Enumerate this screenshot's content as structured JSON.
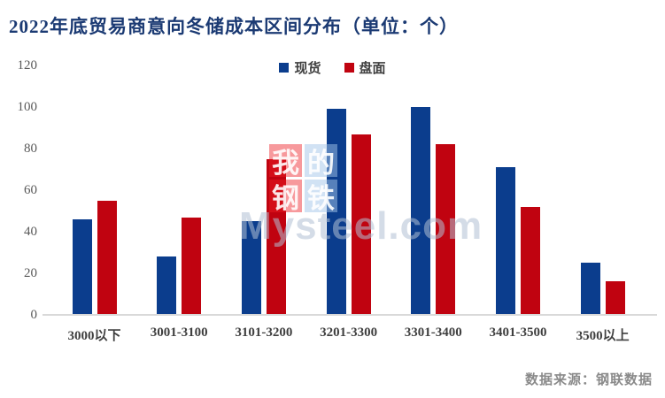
{
  "title": "2022年底贸易商意向冬储成本区间分布（单位：个）",
  "legend": [
    {
      "label": "现货",
      "color": "#0b3d8d"
    },
    {
      "label": "盘面",
      "color": "#c00310"
    }
  ],
  "source": "数据来源：钢联数据",
  "watermark": {
    "squares": [
      {
        "char": "我",
        "bg": "red"
      },
      {
        "char": "的",
        "bg": "blue"
      },
      {
        "char": "钢",
        "bg": "red"
      },
      {
        "char": "铁",
        "bg": "blue"
      }
    ],
    "text": "Mysteel.com",
    "red_color": "rgba(237,28,36,0.45)",
    "blue_color": "rgba(164,197,233,0.5)"
  },
  "colors": {
    "title": "#1b3a73",
    "spot_blue": "#0b3d8d",
    "futures_red": "#c00310",
    "axis_line": "#d9d9d9",
    "ytick_text": "#595959",
    "xlabel_text": "#3f3f3f",
    "source_text": "#8a8a8a"
  },
  "chart_data": {
    "type": "bar",
    "title": "2022年底贸易商意向冬储成本区间分布（单位：个）",
    "categories": [
      "3000以下",
      "3001-3100",
      "3101-3200",
      "3201-3300",
      "3301-3400",
      "3401-3500",
      "3500以上"
    ],
    "series": [
      {
        "name": "现货",
        "color": "#0b3d8d",
        "values": [
          46,
          28,
          45,
          99,
          100,
          71,
          25
        ]
      },
      {
        "name": "盘面",
        "color": "#c00310",
        "values": [
          55,
          47,
          75,
          87,
          82,
          52,
          16
        ]
      }
    ],
    "xlabel": "",
    "ylabel": "",
    "ylim": [
      0,
      120
    ],
    "yticks": [
      0,
      20,
      40,
      60,
      80,
      100,
      120
    ],
    "grid": false,
    "legend_position": "top-center",
    "annotation": "数据来源：钢联数据"
  }
}
